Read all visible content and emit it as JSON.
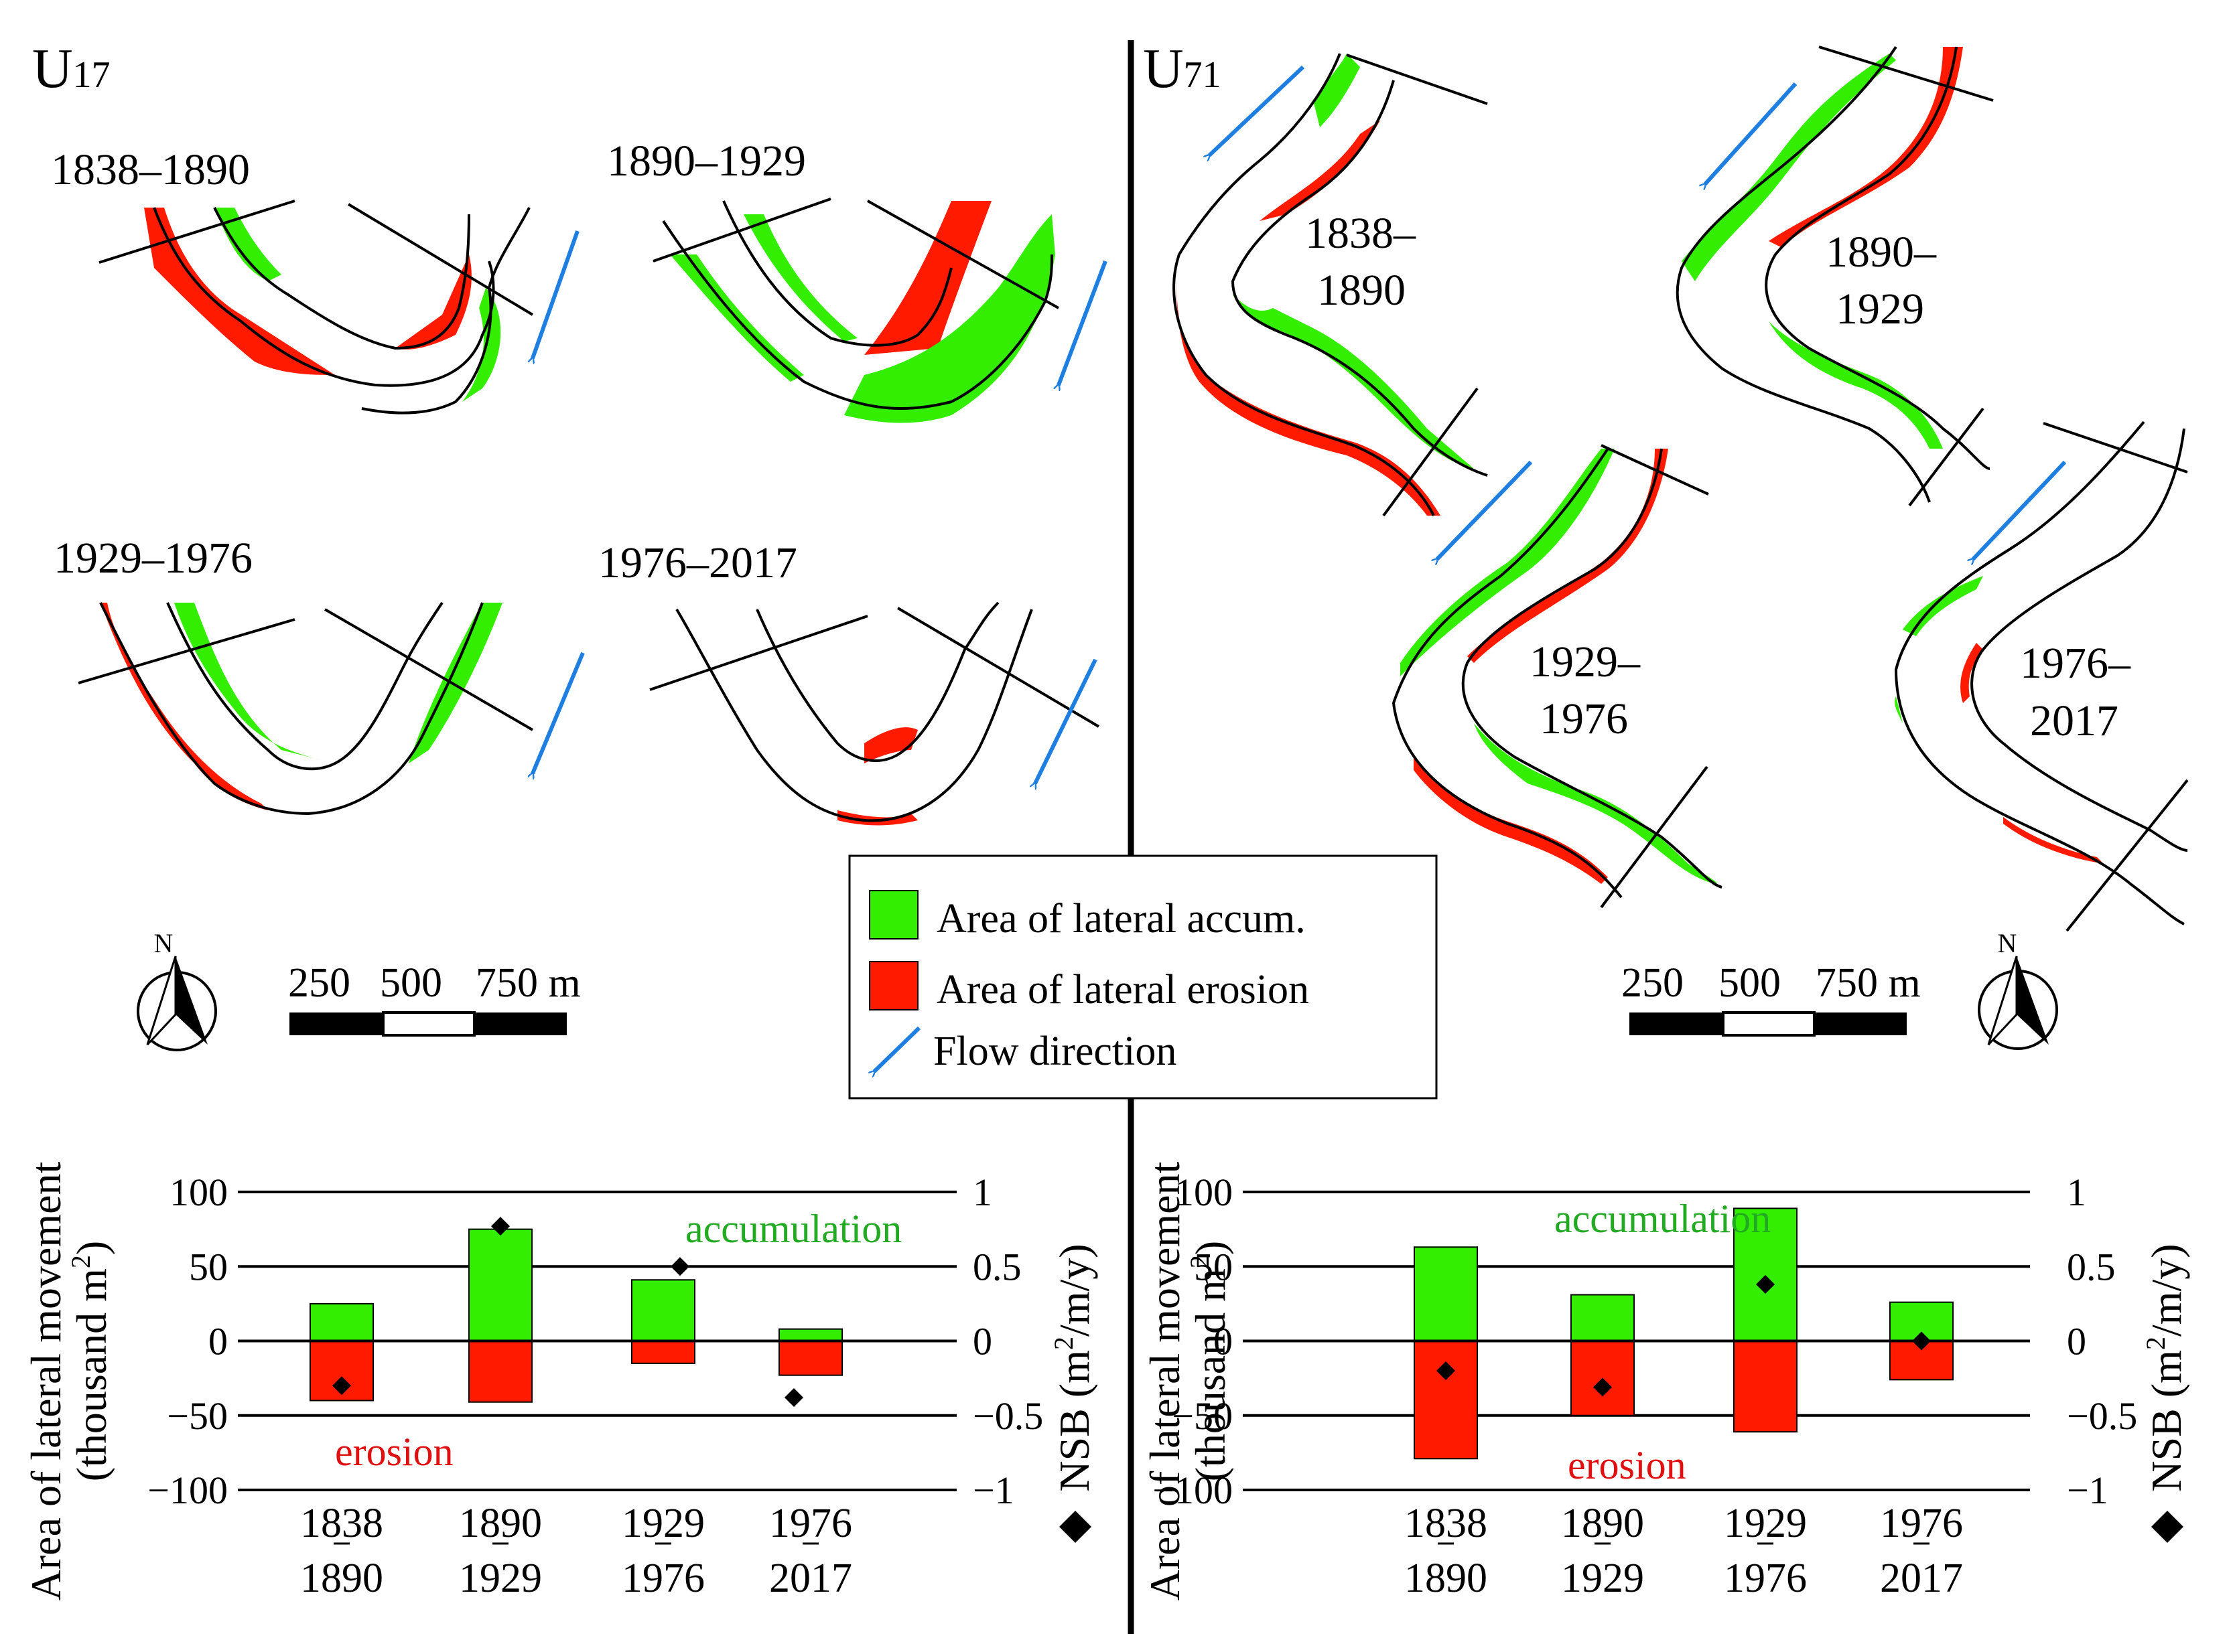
{
  "figure": {
    "left_site": "U",
    "left_site_sub": "17",
    "right_site": "U",
    "right_site_sub": "71",
    "left_periods": [
      "1838–1890",
      "1890–1929",
      "1929–1976",
      "1976–2017"
    ],
    "right_periods": [
      [
        "1838–",
        "1890"
      ],
      [
        "1890–",
        "1929"
      ],
      [
        "1929–",
        "1976"
      ],
      [
        "1976–",
        "2017"
      ]
    ]
  },
  "legend": {
    "accum": "Area of lateral accum.",
    "erosion": "Area of lateral erosion",
    "flow": "Flow direction"
  },
  "scale": {
    "labels": [
      "250",
      "500",
      "750 m"
    ],
    "north": "N"
  },
  "colors": {
    "accum": "#33ee00",
    "erosion": "#ff1a00",
    "flow": "#1f7fe0",
    "accum_text": "#22aa22",
    "erosion_text": "#e01010"
  },
  "chart_data": [
    {
      "type": "bar",
      "site": "U17",
      "categories": [
        [
          "1838",
          "1890"
        ],
        [
          "1890",
          "1929"
        ],
        [
          "1929",
          "1976"
        ],
        [
          "1976",
          "2017"
        ]
      ],
      "series": [
        {
          "name": "accumulation",
          "values": [
            25,
            75,
            41,
            8
          ]
        },
        {
          "name": "erosion",
          "values": [
            -40,
            -41,
            -15,
            -23
          ]
        }
      ],
      "nsb": {
        "name": "NSB (m2/m/y)",
        "values": [
          -0.3,
          0.77,
          0.5,
          -0.38
        ]
      },
      "ylabel_line1": "Area of lateral movement",
      "ylabel_line2": "(thousand m",
      "ylabel_sup": "2",
      "ylabel_end": ")",
      "y2label": "NSB (m",
      "y2label_sup": "2",
      "y2label_end": "/m/y)",
      "ylim": [
        -100,
        100
      ],
      "y2lim": [
        -1,
        1
      ],
      "yticks": [
        "100",
        "50",
        "0",
        "−50",
        "−100"
      ],
      "y2ticks": [
        "1",
        "0.5",
        "0",
        "−0.5",
        "−1"
      ],
      "accum_label": "accumulation",
      "erosion_label": "erosion",
      "diamond": "◆"
    },
    {
      "type": "bar",
      "site": "U71",
      "categories": [
        [
          "1838",
          "1890"
        ],
        [
          "1890",
          "1929"
        ],
        [
          "1929",
          "1976"
        ],
        [
          "1976",
          "2017"
        ]
      ],
      "series": [
        {
          "name": "accumulation",
          "values": [
            63,
            31,
            89,
            26
          ]
        },
        {
          "name": "erosion",
          "values": [
            -79,
            -50,
            -61,
            -26
          ]
        }
      ],
      "nsb": {
        "name": "NSB (m2/m/y)",
        "values": [
          -0.2,
          -0.31,
          0.38,
          0.0
        ]
      },
      "ylabel_line1": "Area of lateral movement",
      "ylabel_line2": "(thousand m",
      "ylabel_sup": "2",
      "ylabel_end": ")",
      "y2label": "NSB (m",
      "y2label_sup": "2",
      "y2label_end": "/m/y)",
      "ylim": [
        -100,
        100
      ],
      "y2lim": [
        -1,
        1
      ],
      "yticks": [
        "100",
        "50",
        "0",
        "−50",
        "−100"
      ],
      "y2ticks": [
        "1",
        "0.5",
        "0",
        "−0.5",
        "−1"
      ],
      "accum_label": "accumulation",
      "erosion_label": "erosion",
      "diamond": "◆"
    }
  ]
}
